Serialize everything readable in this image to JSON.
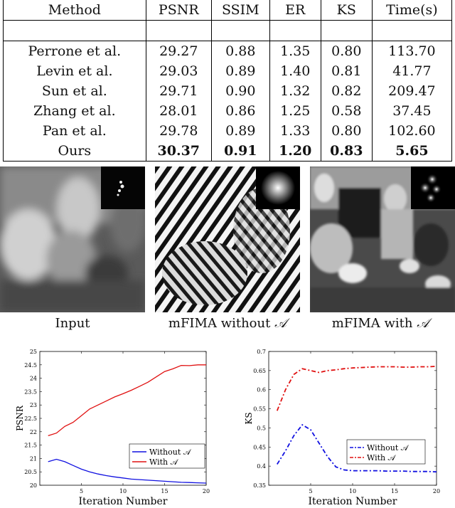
{
  "table": {
    "headers": [
      "Method",
      "PSNR",
      "SSIM",
      "ER",
      "KS",
      "Time(s)"
    ],
    "rows": [
      [
        "Perrone et al.",
        "29.27",
        "0.88",
        "1.35",
        "0.80",
        "113.70"
      ],
      [
        "Levin et al.",
        "29.03",
        "0.89",
        "1.40",
        "0.81",
        "41.77"
      ],
      [
        "Sun et al.",
        "29.71",
        "0.90",
        "1.32",
        "0.82",
        "209.47"
      ],
      [
        "Zhang et al.",
        "28.01",
        "0.86",
        "1.25",
        "0.58",
        "37.45"
      ],
      [
        "Pan et al.",
        "29.78",
        "0.89",
        "1.33",
        "0.80",
        "102.60"
      ],
      [
        "Ours",
        "30.37",
        "0.91",
        "1.20",
        "0.83",
        "5.65"
      ]
    ]
  },
  "images": {
    "captions": [
      "Input",
      "mFIMA without",
      "mFIMA with"
    ],
    "symbol": "𝒜"
  },
  "chart_data": [
    {
      "type": "line",
      "xlabel": "Iteration Number",
      "ylabel": "PSNR",
      "xlim": [
        0,
        20
      ],
      "ylim": [
        20,
        25
      ],
      "xticks": [
        "5",
        "10",
        "15",
        "20"
      ],
      "yticks": [
        "20",
        "20.5",
        "21",
        "21.5",
        "22",
        "22.5",
        "23",
        "23.5",
        "24",
        "24.5",
        "25"
      ],
      "legend_position": "bottom-right",
      "series": [
        {
          "name": "Without 𝒜",
          "color": "#1010e0",
          "x": [
            1,
            2,
            3,
            4,
            5,
            6,
            7,
            8,
            9,
            10,
            11,
            12,
            13,
            14,
            15,
            16,
            17,
            18,
            19,
            20
          ],
          "y": [
            20.88,
            20.97,
            20.88,
            20.74,
            20.6,
            20.5,
            20.42,
            20.36,
            20.31,
            20.27,
            20.23,
            20.21,
            20.19,
            20.17,
            20.15,
            20.13,
            20.11,
            20.1,
            20.09,
            20.08
          ]
        },
        {
          "name": "With 𝒜",
          "color": "#e01010",
          "x": [
            1,
            2,
            3,
            4,
            5,
            6,
            7,
            8,
            9,
            10,
            11,
            12,
            13,
            14,
            15,
            16,
            17,
            18,
            19,
            20
          ],
          "y": [
            21.85,
            21.95,
            22.2,
            22.35,
            22.6,
            22.85,
            23.0,
            23.15,
            23.3,
            23.42,
            23.55,
            23.7,
            23.85,
            24.05,
            24.25,
            24.35,
            24.48,
            24.47,
            24.5,
            24.5
          ]
        }
      ]
    },
    {
      "type": "line",
      "xlabel": "Iteration Number",
      "ylabel": "KS",
      "xlim": [
        0,
        20
      ],
      "ylim": [
        0.35,
        0.7
      ],
      "xticks": [
        "5",
        "10",
        "15",
        "20"
      ],
      "yticks": [
        "0.35",
        "0.4",
        "0.45",
        "0.5",
        "0.55",
        "0.6",
        "0.65",
        "0.7"
      ],
      "legend_position": "bottom-right",
      "series": [
        {
          "name": "Without 𝒜",
          "color": "#1010e0",
          "x": [
            1,
            2,
            3,
            4,
            5,
            6,
            7,
            8,
            9,
            10,
            11,
            12,
            13,
            14,
            15,
            16,
            17,
            18,
            19,
            20
          ],
          "y": [
            0.405,
            0.44,
            0.48,
            0.508,
            0.495,
            0.46,
            0.425,
            0.398,
            0.39,
            0.388,
            0.388,
            0.388,
            0.388,
            0.387,
            0.387,
            0.387,
            0.386,
            0.386,
            0.386,
            0.385
          ]
        },
        {
          "name": "With 𝒜",
          "color": "#e01010",
          "x": [
            1,
            2,
            3,
            4,
            5,
            6,
            7,
            8,
            9,
            10,
            11,
            12,
            13,
            14,
            15,
            16,
            17,
            18,
            19,
            20
          ],
          "y": [
            0.545,
            0.6,
            0.64,
            0.655,
            0.65,
            0.645,
            0.65,
            0.652,
            0.655,
            0.657,
            0.658,
            0.659,
            0.66,
            0.66,
            0.66,
            0.659,
            0.659,
            0.66,
            0.66,
            0.661
          ]
        }
      ]
    }
  ]
}
